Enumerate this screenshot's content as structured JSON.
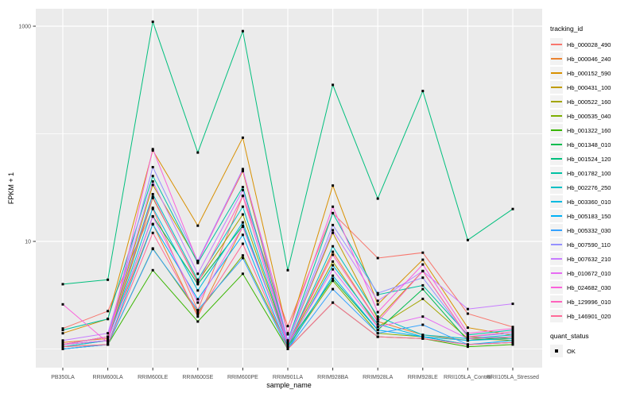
{
  "figure": {
    "panel_bg": "#EBEBEB",
    "grid_color": "#FFFFFF",
    "axis_text_color": "#4D4D4D",
    "tick_mark_color": "#333333",
    "point_color": "#000000",
    "legend_key_bg": "#F2F2F2"
  },
  "axes": {
    "x_title": "sample_name",
    "y_title": "FPKM + 1",
    "y_tick_labels": [
      {
        "label": "1000",
        "value": 1000
      },
      {
        "label": "10",
        "value": 10
      }
    ]
  },
  "legend": {
    "tracking_title": "tracking_id",
    "quant_title": "quant_status",
    "quant_items": [
      {
        "label": "OK",
        "marker": "black-square"
      }
    ]
  },
  "chart_data": {
    "type": "line",
    "title": "",
    "xlabel": "sample_name",
    "ylabel": "FPKM + 1",
    "y_scale": "log10",
    "ylim": [
      0.85,
      1400
    ],
    "grid": true,
    "legend_position": "right",
    "y_major_gridlines": [
      10,
      1000
    ],
    "y_minor_gridlines": [
      1,
      100
    ],
    "point_marker": "black-square",
    "categories": [
      "PB350LA",
      "RRIM600LA",
      "RRIM600LE",
      "RRIM600SE",
      "RRIM600PE",
      "RRIM901LA",
      "RRIM928BA",
      "RRIM928LA",
      "RRIM928LE",
      "RRII105LA_Control",
      "RRII105LA_Stressed"
    ],
    "series": [
      {
        "name": "Hb_000028_490",
        "color": "#F8766D",
        "values": [
          1.55,
          2.25,
          20,
          2.3,
          26.5,
          1.63,
          18.3,
          7.0,
          7.85,
          2.13,
          1.6
        ]
      },
      {
        "name": "Hb_000046_240",
        "color": "#EA8331",
        "values": [
          1.15,
          1.25,
          14.5,
          2.0,
          13.7,
          1.1,
          8.0,
          1.8,
          1.35,
          1.2,
          1.3
        ]
      },
      {
        "name": "Hb_000152_590",
        "color": "#D89000",
        "values": [
          1.4,
          1.9,
          70,
          14,
          92,
          1.37,
          33,
          2.6,
          6.75,
          1.58,
          1.34
        ]
      },
      {
        "name": "Hb_000431_100",
        "color": "#C09B00",
        "values": [
          1.1,
          1.3,
          33.5,
          6.5,
          45,
          1.15,
          12,
          1.9,
          5.3,
          1.3,
          1.25
        ]
      },
      {
        "name": "Hb_000522_160",
        "color": "#A3A500",
        "values": [
          1.05,
          1.2,
          25.3,
          4.2,
          17.8,
          1.1,
          6.5,
          1.6,
          2.92,
          1.25,
          1.2
        ]
      },
      {
        "name": "Hb_000535_040",
        "color": "#7CAE00",
        "values": [
          1.05,
          1.1,
          8.6,
          2.2,
          7.4,
          1.05,
          4.3,
          1.4,
          1.3,
          1.1,
          1.15
        ]
      },
      {
        "name": "Hb_001322_160",
        "color": "#39B600",
        "values": [
          1.0,
          1.1,
          5.4,
          1.8,
          5.0,
          1.0,
          2.7,
          1.3,
          1.25,
          1.05,
          1.1
        ]
      },
      {
        "name": "Hb_001348_010",
        "color": "#00BB4E",
        "values": [
          1.1,
          1.2,
          17.1,
          4.0,
          14,
          1.1,
          4.5,
          1.5,
          3.6,
          1.2,
          1.3
        ]
      },
      {
        "name": "Hb_001524_120",
        "color": "#00BF7D",
        "values": [
          4.0,
          4.4,
          1100,
          67,
          900,
          5.4,
          285,
          25,
          250,
          10.3,
          20
        ]
      },
      {
        "name": "Hb_001782_100",
        "color": "#00C1A3",
        "values": [
          1.5,
          1.9,
          40.5,
          6.3,
          32,
          1.2,
          18.3,
          3.2,
          3.9,
          1.35,
          1.5
        ]
      },
      {
        "name": "Hb_002276_250",
        "color": "#00BFC4",
        "values": [
          1.1,
          1.3,
          27.5,
          4.4,
          21,
          1.1,
          9.0,
          2.0,
          1.35,
          1.25,
          1.35
        ]
      },
      {
        "name": "Hb_003360_010",
        "color": "#00BAE0",
        "values": [
          1.05,
          1.2,
          20.5,
          3.5,
          15,
          1.05,
          6.0,
          1.7,
          1.3,
          1.2,
          1.25
        ]
      },
      {
        "name": "Hb_005183_150",
        "color": "#00B0F6",
        "values": [
          1.0,
          1.1,
          14.4,
          2.9,
          11.5,
          1.0,
          4.8,
          1.5,
          1.3,
          1.1,
          1.2
        ]
      },
      {
        "name": "Hb_005332_030",
        "color": "#35A2FF",
        "values": [
          1.0,
          1.1,
          8.5,
          2.3,
          7.0,
          1.0,
          3.6,
          1.4,
          1.68,
          1.1,
          1.15
        ]
      },
      {
        "name": "Hb_007590_110",
        "color": "#9590FF",
        "values": [
          1.1,
          1.3,
          49,
          6.6,
          47,
          1.2,
          14.2,
          3.3,
          4.6,
          1.3,
          1.4
        ]
      },
      {
        "name": "Hb_007632_210",
        "color": "#C77CFF",
        "values": [
          1.2,
          1.4,
          36,
          5.0,
          30,
          1.15,
          12.7,
          2.8,
          5.3,
          2.35,
          2.63
        ]
      },
      {
        "name": "Hb_010672_010",
        "color": "#E76BF3",
        "values": [
          1.1,
          1.2,
          17,
          2.7,
          13.7,
          1.1,
          5.5,
          1.6,
          2.0,
          1.25,
          1.3
        ]
      },
      {
        "name": "Hb_024682_030",
        "color": "#FA62DB",
        "values": [
          2.6,
          1.15,
          72,
          6.4,
          46,
          1.4,
          21,
          2.2,
          6.1,
          1.4,
          1.55
        ]
      },
      {
        "name": "Hb_129996_010",
        "color": "#FF62BC",
        "values": [
          1.1,
          1.3,
          26,
          4.1,
          26.5,
          1.1,
          7.5,
          1.8,
          5.3,
          1.3,
          1.45
        ]
      },
      {
        "name": "Hb_146901_020",
        "color": "#FF6A98",
        "values": [
          1.05,
          1.1,
          12,
          2.1,
          9.5,
          1.0,
          2.7,
          1.3,
          1.25,
          1.1,
          1.15
        ]
      }
    ]
  }
}
